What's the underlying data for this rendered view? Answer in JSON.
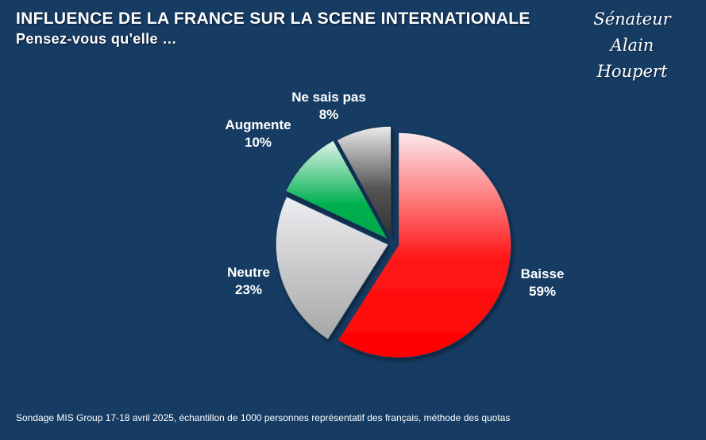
{
  "header": {
    "title": "INFLUENCE DE LA FRANCE SUR LA SCENE INTERNATIONALE",
    "subtitle": "Pensez-vous qu'elle …"
  },
  "signature": {
    "line1": "Sénateur",
    "line2": "Alain Houpert"
  },
  "footer": {
    "source": "Sondage MIS Group 17-18 avril 2025, échantillon de 1000 personnes représentatif des français, méthode des quotas"
  },
  "colors": {
    "background": "#173c64",
    "baisse": "#ff0000",
    "neutre": "#b4b4b4",
    "augmente": "#00b050",
    "ne_sais_pas": "#3a3a3a"
  },
  "chart_data": {
    "type": "pie",
    "unit": "%",
    "slices": [
      {
        "label": "Baisse",
        "value": 59,
        "value_label": "59%",
        "color_key": "baisse"
      },
      {
        "label": "Neutre",
        "value": 23,
        "value_label": "23%",
        "color_key": "neutre"
      },
      {
        "label": "Augmente",
        "value": 10,
        "value_label": "10%",
        "color_key": "augmente"
      },
      {
        "label": "Ne sais pas",
        "value": 8,
        "value_label": "8%",
        "color_key": "ne_sais_pas"
      }
    ],
    "start": "12 o'clock",
    "direction": "clockwise",
    "exploded": true,
    "legend": "none"
  }
}
